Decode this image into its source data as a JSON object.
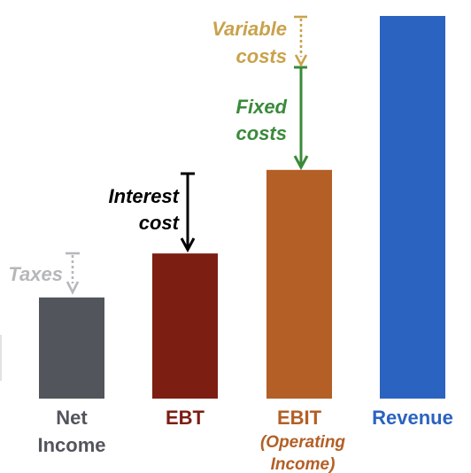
{
  "chart_data": {
    "type": "bar",
    "categories": [
      "Net Income",
      "EBT",
      "EBIT",
      "Revenue"
    ],
    "values": [
      23,
      33,
      52,
      87
    ],
    "ylim": [
      0,
      87
    ],
    "colors": [
      "#53555c",
      "#7c1e12",
      "#b35f26",
      "#2b63c0"
    ],
    "grid": false,
    "legend": "none"
  },
  "x_labels": [
    {
      "line1": "Net",
      "line2": "Income",
      "color": "#53555c"
    },
    {
      "line1": "EBT",
      "line2": "",
      "color": "#7c1e12"
    },
    {
      "line1": "EBIT",
      "line2": "",
      "color": "#b35f26",
      "sub1": "(Operating",
      "sub2": "Income)"
    },
    {
      "line1": "Revenue",
      "line2": "",
      "color": "#2b63c0"
    }
  ],
  "deductions": [
    {
      "line1": "Taxes",
      "line2": "",
      "color": "#b5b7bb",
      "style": "dotted",
      "icon": "dotted-arrow-icon"
    },
    {
      "line1": "Interest",
      "line2": "cost",
      "color": "#000000",
      "style": "solid",
      "icon": "solid-arrow-icon"
    },
    {
      "line1": "Fixed",
      "line2": "costs",
      "color": "#3a8a3a",
      "style": "solid",
      "icon": "solid-arrow-icon"
    },
    {
      "line1": "Variable",
      "line2": "costs",
      "color": "#c9a24c",
      "style": "dotted",
      "icon": "dotted-arrow-icon"
    }
  ]
}
